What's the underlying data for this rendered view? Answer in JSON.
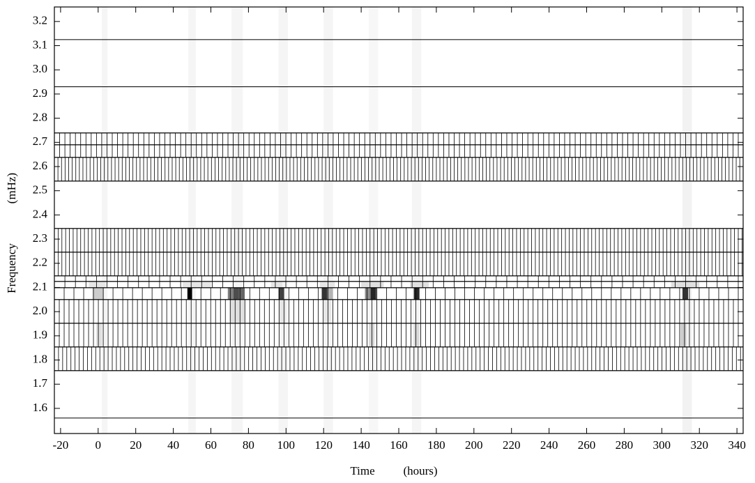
{
  "chart_data": {
    "type": "spectrogram",
    "xlabel": "Time",
    "xlabel_unit": "(hours)",
    "ylabel": "Frequency",
    "ylabel_unit": "(mHz)",
    "xlim": [
      -23.3,
      343.3
    ],
    "ylim": [
      1.496,
      3.26
    ],
    "xticks": [
      -20,
      0,
      20,
      40,
      60,
      80,
      100,
      120,
      140,
      160,
      180,
      200,
      220,
      240,
      260,
      280,
      300,
      320,
      340
    ],
    "yticks": [
      1.6,
      1.7,
      1.8,
      1.9,
      {
        "value": 2,
        "label": "2.0"
      },
      2.1,
      2.2,
      2.3,
      2.4,
      2.5,
      2.6,
      2.7,
      2.8,
      2.9,
      {
        "value": 3,
        "label": "3.0"
      },
      3.1,
      3.2
    ],
    "rows": [
      {
        "fmin": 2.93,
        "fmax": 3.125,
        "step": null
      },
      {
        "fmin": 2.739,
        "fmax": 2.93,
        "step": null
      },
      {
        "fmin": 2.69,
        "fmax": 2.739,
        "step": 2.8
      },
      {
        "fmin": 2.638,
        "fmax": 2.69,
        "step": 2.8
      },
      {
        "fmin": 2.54,
        "fmax": 2.638,
        "step": 1.9
      },
      {
        "fmin": 2.344,
        "fmax": 2.54,
        "step": null
      },
      {
        "fmin": 2.246,
        "fmax": 2.344,
        "step": 2.0
      },
      {
        "fmin": 2.148,
        "fmax": 2.246,
        "step": 2.0
      },
      {
        "fmin": 2.125,
        "fmax": 2.148,
        "step": 5.6
      },
      {
        "fmin": 2.099,
        "fmax": 2.125,
        "step": 5.6
      },
      {
        "fmin": 2.05,
        "fmax": 2.099,
        "step": 5.2
      },
      {
        "fmin": 1.952,
        "fmax": 2.05,
        "step": 2.6
      },
      {
        "fmin": 1.854,
        "fmax": 1.952,
        "step": 2.6
      },
      {
        "fmin": 1.756,
        "fmax": 1.854,
        "step": 2.2
      },
      {
        "fmin": 1.56,
        "fmax": 1.756,
        "step": null
      }
    ],
    "cells": [
      [
        2,
        5,
        1.496,
        3.26,
        0.04
      ],
      [
        48,
        52,
        1.496,
        3.26,
        0.04
      ],
      [
        71,
        77,
        1.496,
        3.26,
        0.04
      ],
      [
        96,
        101,
        1.496,
        3.26,
        0.04
      ],
      [
        120,
        125,
        1.496,
        3.26,
        0.04
      ],
      [
        144,
        149,
        1.496,
        3.26,
        0.03
      ],
      [
        167,
        172,
        1.496,
        3.26,
        0.04
      ],
      [
        311,
        316,
        1.496,
        3.26,
        0.05
      ],
      [
        -5,
        4,
        2.099,
        2.125,
        0.1
      ],
      [
        45,
        60,
        2.099,
        2.125,
        0.1
      ],
      [
        92,
        98,
        2.099,
        2.125,
        0.1
      ],
      [
        118,
        126,
        2.099,
        2.125,
        0.1
      ],
      [
        140,
        152,
        2.099,
        2.125,
        0.12
      ],
      [
        166,
        176,
        2.099,
        2.125,
        0.12
      ],
      [
        305,
        320,
        2.099,
        2.125,
        0.12
      ],
      [
        -3,
        3,
        2.05,
        2.099,
        0.2
      ],
      [
        47.5,
        50,
        2.05,
        2.099,
        1.0
      ],
      [
        69,
        72,
        2.05,
        2.099,
        0.5
      ],
      [
        72,
        75,
        2.05,
        2.099,
        0.7
      ],
      [
        75,
        78,
        2.05,
        2.099,
        0.6
      ],
      [
        96,
        99,
        2.05,
        2.099,
        0.75
      ],
      [
        119,
        122,
        2.05,
        2.099,
        0.8
      ],
      [
        122,
        125,
        2.05,
        2.099,
        0.3
      ],
      [
        142,
        145,
        2.05,
        2.099,
        0.45
      ],
      [
        145,
        148,
        2.05,
        2.099,
        0.85
      ],
      [
        168,
        171,
        2.05,
        2.099,
        0.85
      ],
      [
        311,
        314,
        2.05,
        2.099,
        0.8
      ],
      [
        70,
        78,
        1.952,
        2.05,
        0.12
      ],
      [
        96,
        100,
        1.952,
        2.05,
        0.1
      ],
      [
        120,
        124,
        1.952,
        2.05,
        0.1
      ],
      [
        -1,
        2,
        1.854,
        1.952,
        0.12
      ],
      [
        144,
        147,
        1.854,
        1.952,
        0.15
      ],
      [
        168,
        171,
        1.854,
        1.952,
        0.15
      ],
      [
        310,
        313,
        1.854,
        1.952,
        0.2
      ]
    ]
  }
}
